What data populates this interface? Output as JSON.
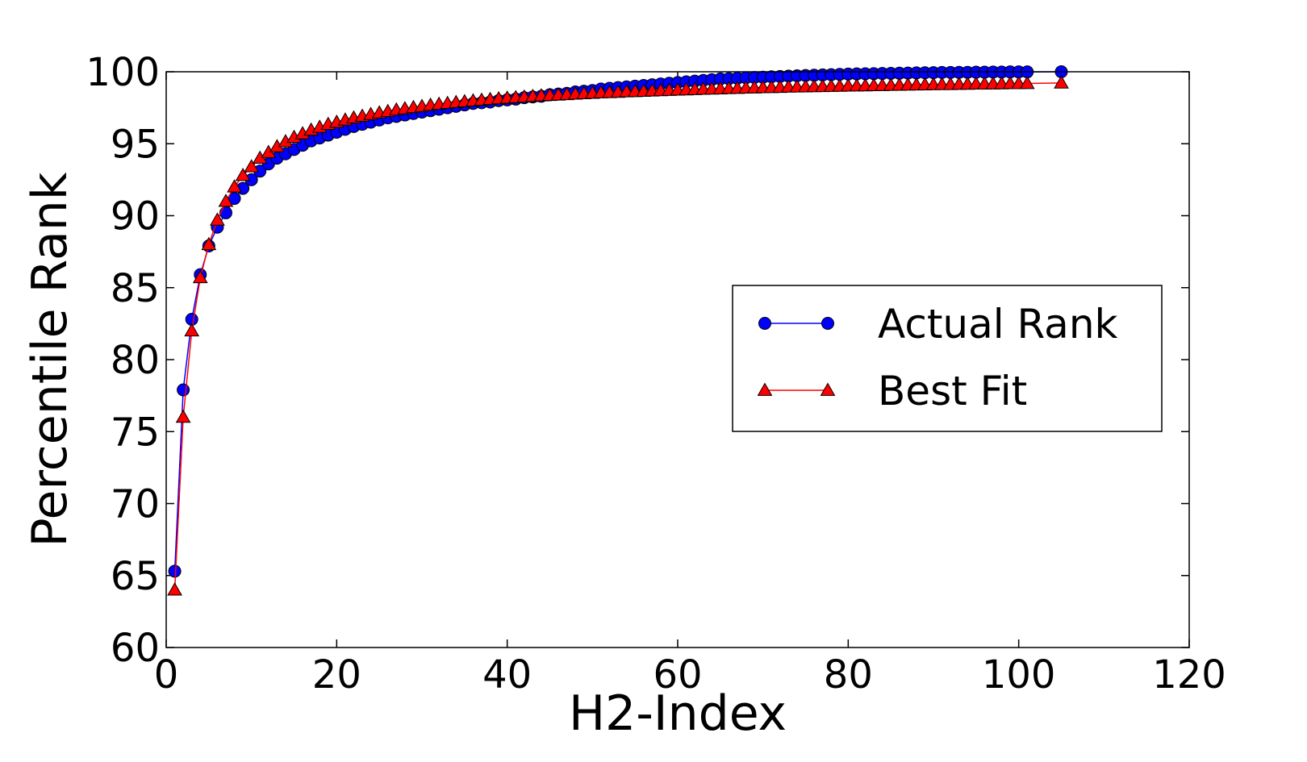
{
  "chart_data": {
    "type": "line",
    "xlabel": "H2-Index",
    "ylabel": "Percentile Rank",
    "xlim": [
      0,
      120
    ],
    "ylim": [
      60,
      100
    ],
    "x_ticks": [
      0,
      20,
      40,
      60,
      80,
      100,
      120
    ],
    "y_ticks": [
      60,
      65,
      70,
      75,
      80,
      85,
      90,
      95,
      100
    ],
    "grid": false,
    "legend_position": "center-right",
    "series": [
      {
        "name": "Actual Rank",
        "color": "#0000ff",
        "marker": "circle",
        "x": [
          1,
          2,
          3,
          4,
          5,
          6,
          7,
          8,
          9,
          10,
          11,
          12,
          13,
          14,
          15,
          16,
          17,
          18,
          19,
          20,
          21,
          22,
          23,
          24,
          25,
          26,
          27,
          28,
          29,
          30,
          31,
          32,
          33,
          34,
          35,
          36,
          37,
          38,
          39,
          40,
          41,
          42,
          43,
          44,
          45,
          46,
          47,
          48,
          49,
          50,
          51,
          52,
          53,
          54,
          55,
          56,
          57,
          58,
          59,
          60,
          61,
          62,
          63,
          64,
          65,
          66,
          67,
          68,
          69,
          70,
          71,
          72,
          73,
          74,
          75,
          76,
          77,
          78,
          79,
          80,
          81,
          82,
          83,
          84,
          85,
          86,
          87,
          88,
          89,
          90,
          91,
          92,
          93,
          94,
          95,
          96,
          97,
          98,
          99,
          100,
          101,
          105
        ],
        "values": [
          65.3,
          77.9,
          82.8,
          85.9,
          87.9,
          89.2,
          90.2,
          91.2,
          91.9,
          92.5,
          93.1,
          93.6,
          94.0,
          94.3,
          94.6,
          94.9,
          95.2,
          95.4,
          95.6,
          95.8,
          96.0,
          96.2,
          96.35,
          96.5,
          96.65,
          96.8,
          96.9,
          97.0,
          97.1,
          97.2,
          97.3,
          97.4,
          97.5,
          97.6,
          97.7,
          97.8,
          97.85,
          97.9,
          98.0,
          98.05,
          98.1,
          98.2,
          98.25,
          98.3,
          98.4,
          98.45,
          98.5,
          98.6,
          98.65,
          98.7,
          98.8,
          98.85,
          98.9,
          98.95,
          99.0,
          99.05,
          99.1,
          99.15,
          99.2,
          99.25,
          99.3,
          99.35,
          99.4,
          99.45,
          99.5,
          99.52,
          99.55,
          99.58,
          99.6,
          99.62,
          99.65,
          99.67,
          99.7,
          99.72,
          99.74,
          99.76,
          99.78,
          99.8,
          99.82,
          99.84,
          99.85,
          99.86,
          99.87,
          99.88,
          99.89,
          99.9,
          99.91,
          99.92,
          99.93,
          99.94,
          99.95,
          99.95,
          99.96,
          99.96,
          99.97,
          99.97,
          99.98,
          99.98,
          99.99,
          99.99,
          99.99,
          100.0
        ]
      },
      {
        "name": "Best Fit",
        "color": "#ff0000",
        "marker": "triangle",
        "x": [
          1,
          2,
          3,
          4,
          5,
          6,
          7,
          8,
          9,
          10,
          11,
          12,
          13,
          14,
          15,
          16,
          17,
          18,
          19,
          20,
          21,
          22,
          23,
          24,
          25,
          26,
          27,
          28,
          29,
          30,
          31,
          32,
          33,
          34,
          35,
          36,
          37,
          38,
          39,
          40,
          41,
          42,
          43,
          44,
          45,
          46,
          47,
          48,
          49,
          50,
          51,
          52,
          53,
          54,
          55,
          56,
          57,
          58,
          59,
          60,
          61,
          62,
          63,
          64,
          65,
          66,
          67,
          68,
          69,
          70,
          71,
          72,
          73,
          74,
          75,
          76,
          77,
          78,
          79,
          80,
          81,
          82,
          83,
          84,
          85,
          86,
          87,
          88,
          89,
          90,
          91,
          92,
          93,
          94,
          95,
          96,
          97,
          98,
          99,
          100,
          101,
          105
        ],
        "values": [
          64.0,
          76.0,
          82.0,
          85.7,
          88.0,
          89.7,
          91.0,
          92.0,
          92.8,
          93.4,
          94.0,
          94.4,
          94.8,
          95.15,
          95.45,
          95.7,
          95.95,
          96.15,
          96.35,
          96.5,
          96.65,
          96.8,
          96.92,
          97.04,
          97.15,
          97.25,
          97.35,
          97.44,
          97.52,
          97.6,
          97.68,
          97.75,
          97.81,
          97.87,
          97.93,
          97.98,
          98.03,
          98.08,
          98.13,
          98.17,
          98.21,
          98.25,
          98.29,
          98.33,
          98.36,
          98.39,
          98.42,
          98.45,
          98.48,
          98.51,
          98.54,
          98.56,
          98.58,
          98.61,
          98.63,
          98.65,
          98.67,
          98.69,
          98.71,
          98.73,
          98.75,
          98.77,
          98.79,
          98.8,
          98.82,
          98.84,
          98.85,
          98.87,
          98.88,
          98.9,
          98.91,
          98.92,
          98.94,
          98.95,
          98.96,
          98.97,
          98.98,
          98.99,
          99.0,
          99.01,
          99.02,
          99.03,
          99.04,
          99.05,
          99.06,
          99.07,
          99.08,
          99.09,
          99.1,
          99.11,
          99.12,
          99.12,
          99.13,
          99.14,
          99.15,
          99.15,
          99.16,
          99.17,
          99.18,
          99.18,
          99.19,
          99.22
        ]
      }
    ]
  }
}
